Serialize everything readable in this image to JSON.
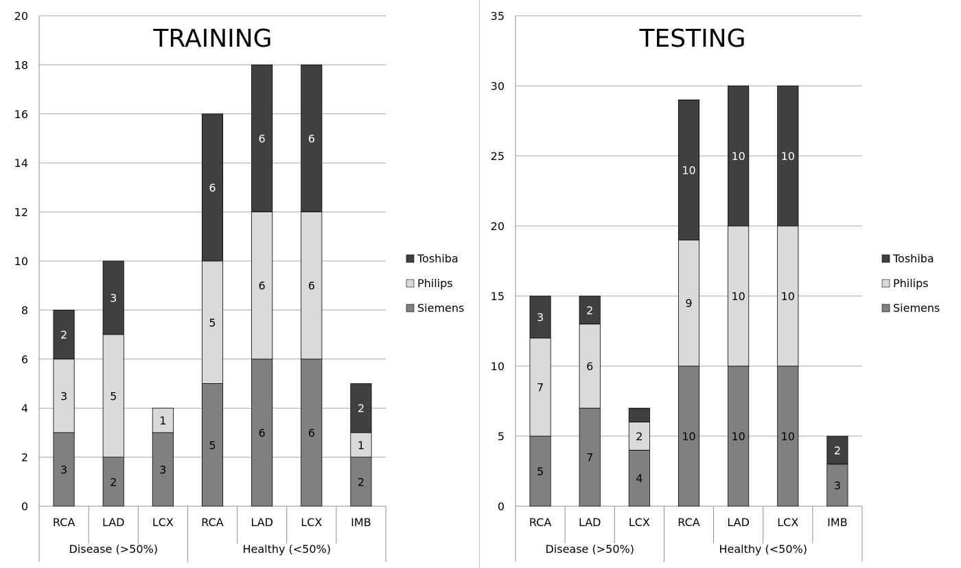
{
  "colors": {
    "Toshiba": "#404040",
    "Philips": "#d9d9d9",
    "Siemens": "#808080",
    "grid": "#a6a6a6",
    "axis": "#8c8c8c"
  },
  "chart_data": [
    {
      "type": "bar",
      "stacked": true,
      "title": "TRAINING",
      "groups": [
        {
          "label": "Disease (>50%)",
          "categories": [
            "RCA",
            "LAD",
            "LCX"
          ]
        },
        {
          "label": "Healthy (<50%)",
          "categories": [
            "RCA",
            "LAD",
            "LCX",
            "IMB"
          ]
        }
      ],
      "categories": [
        "RCA",
        "LAD",
        "LCX",
        "RCA",
        "LAD",
        "LCX",
        "IMB"
      ],
      "series": [
        {
          "name": "Siemens",
          "values": [
            3,
            2,
            3,
            5,
            6,
            6,
            2
          ],
          "labels": [
            "3",
            "2",
            "3",
            "5",
            "6",
            "6",
            "2"
          ]
        },
        {
          "name": "Philips",
          "values": [
            3,
            5,
            1,
            5,
            6,
            6,
            1
          ],
          "labels": [
            "3",
            "5",
            "1",
            "5",
            "6",
            "6",
            "1"
          ]
        },
        {
          "name": "Toshiba",
          "values": [
            2,
            3,
            0,
            6,
            6,
            6,
            2
          ],
          "labels": [
            "2",
            "3",
            "",
            "6",
            "6",
            "6",
            "2"
          ]
        }
      ],
      "ylim": [
        0,
        20
      ],
      "yticks": [
        "0",
        "2",
        "4",
        "6",
        "8",
        "10",
        "12",
        "14",
        "16",
        "18",
        "20"
      ],
      "grid": true,
      "legend_position": "right",
      "legend_order": [
        "Toshiba",
        "Philips",
        "Siemens"
      ]
    },
    {
      "type": "bar",
      "stacked": true,
      "title": "TESTING",
      "groups": [
        {
          "label": "Disease (>50%)",
          "categories": [
            "RCA",
            "LAD",
            "LCX"
          ]
        },
        {
          "label": "Healthy (<50%)",
          "categories": [
            "RCA",
            "LAD",
            "LCX",
            "IMB"
          ]
        }
      ],
      "categories": [
        "RCA",
        "LAD",
        "LCX",
        "RCA",
        "LAD",
        "LCX",
        "IMB"
      ],
      "series": [
        {
          "name": "Siemens",
          "values": [
            5,
            7,
            4,
            10,
            10,
            10,
            3
          ],
          "labels": [
            "5",
            "7",
            "4",
            "10",
            "10",
            "10",
            "3"
          ]
        },
        {
          "name": "Philips",
          "values": [
            7,
            6,
            2,
            9,
            10,
            10,
            0
          ],
          "labels": [
            "7",
            "6",
            "2",
            "9",
            "10",
            "10",
            ""
          ]
        },
        {
          "name": "Toshiba",
          "values": [
            3,
            2,
            1,
            10,
            10,
            10,
            2
          ],
          "labels": [
            "3",
            "2",
            "",
            "10",
            "10",
            "10",
            "2"
          ]
        }
      ],
      "ylim": [
        0,
        35
      ],
      "yticks": [
        "0",
        "5",
        "10",
        "15",
        "20",
        "25",
        "30",
        "35"
      ],
      "grid": true,
      "legend_position": "right",
      "legend_order": [
        "Toshiba",
        "Philips",
        "Siemens"
      ]
    }
  ]
}
